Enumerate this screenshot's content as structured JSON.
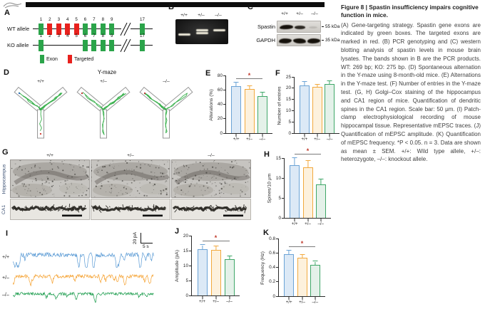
{
  "figure": {
    "panels": {
      "a": "A",
      "b": "B",
      "c": "C",
      "d": "D",
      "e": "E",
      "f": "F",
      "g": "G",
      "h": "H",
      "i": "I",
      "j": "J",
      "k": "K"
    }
  },
  "colors": {
    "bar_fills": [
      "#dce9f6",
      "#fdf1dd",
      "#e4f1e9"
    ],
    "bar_strokes": [
      "#6ba3d6",
      "#f2a93e",
      "#3fa768"
    ],
    "trace_colors": [
      "#5b9bd5",
      "#f5a02d",
      "#169a49"
    ],
    "exon_green": "#2ba44a",
    "targeted_red": "#e8211d",
    "sig_star": "#c0392b",
    "maze_trace": "#27a83c"
  },
  "panel_a": {
    "rows": [
      {
        "label": "WT allele",
        "exons": [
          {
            "num": "1",
            "type": "exon"
          },
          {
            "num": "2",
            "type": "targeted"
          },
          {
            "num": "3",
            "type": "targeted"
          },
          {
            "num": "4",
            "type": "targeted"
          },
          {
            "num": "5",
            "type": "targeted"
          },
          {
            "num": "6",
            "type": "exon"
          },
          {
            "num": "7",
            "type": "exon"
          },
          {
            "num": "8",
            "type": "exon"
          },
          {
            "num": "9",
            "type": "exon"
          }
        ]
      },
      {
        "label": "KO allele",
        "exons": [
          {
            "num": "1",
            "type": "exon"
          },
          {
            "num": "2",
            "type": ""
          },
          {
            "num": "3",
            "type": ""
          },
          {
            "num": "4",
            "type": ""
          },
          {
            "num": "5",
            "type": ""
          },
          {
            "num": "6",
            "type": "exon"
          },
          {
            "num": "7",
            "type": "exon"
          },
          {
            "num": "8",
            "type": "exon"
          },
          {
            "num": "9",
            "type": "exon"
          }
        ]
      }
    ],
    "last_exon": "17",
    "legend": [
      {
        "label": "Exon",
        "type": "exon"
      },
      {
        "label": "Targeted",
        "type": "targeted"
      }
    ]
  },
  "panel_b": {
    "lanes": [
      "+/+",
      "+/–",
      "–/–"
    ]
  },
  "panel_c": {
    "lanes": [
      "+/+",
      "+/–",
      "–/–"
    ],
    "rows": [
      "Spastin",
      "GAPDH"
    ],
    "kda": [
      "55 kDa",
      "35 kDa"
    ]
  },
  "panel_d": {
    "title": "Y-maze",
    "mazes": [
      "+/+",
      "+/–",
      "–/–"
    ]
  },
  "panel_g": {
    "columns": [
      "+/+",
      "+/–",
      "–/–"
    ],
    "row_labels": [
      "Hippocampus",
      "CA1"
    ]
  },
  "panel_i": {
    "traces": [
      {
        "label": "+/+"
      },
      {
        "label": "+/–"
      },
      {
        "label": "–/–"
      }
    ],
    "scale_vertical": "20 pA",
    "scale_horizontal": "5 s"
  },
  "chart_data": [
    {
      "panel": "E",
      "type": "bar",
      "ylabel": "Alterations (%)",
      "ylim": [
        0,
        80
      ],
      "yticks": [
        0,
        20,
        40,
        60,
        80
      ],
      "categories": [
        "+/+",
        "+/–",
        "–/–"
      ],
      "values": [
        65,
        61,
        51
      ],
      "errors": [
        5,
        4,
        5
      ],
      "significance": {
        "from": 0,
        "to": 2,
        "label": "*"
      }
    },
    {
      "panel": "F",
      "type": "bar",
      "ylabel": "Number of entries",
      "ylim": [
        0,
        25
      ],
      "yticks": [
        0,
        5,
        10,
        15,
        20,
        25
      ],
      "categories": [
        "+/+",
        "+/–",
        "–/–"
      ],
      "values": [
        21.2,
        20.6,
        21.7
      ],
      "errors": [
        1.5,
        1.0,
        1.4
      ],
      "significance": null
    },
    {
      "panel": "H",
      "type": "bar",
      "ylabel": "Spines/10 μm",
      "ylim": [
        0,
        15
      ],
      "yticks": [
        0,
        5,
        10,
        15
      ],
      "categories": [
        "+/+",
        "+/–",
        "–/–"
      ],
      "values": [
        13.2,
        12.6,
        8.4
      ],
      "errors": [
        1.8,
        1.7,
        1.3
      ],
      "significance": {
        "from": 0,
        "to": 2,
        "label": "*"
      }
    },
    {
      "panel": "J",
      "type": "bar",
      "ylabel": "Amplitude (pA)",
      "ylim": [
        0,
        20
      ],
      "yticks": [
        0,
        5,
        10,
        15,
        20
      ],
      "categories": [
        "+/+",
        "+/–",
        "–/–"
      ],
      "values": [
        15.6,
        15.2,
        12.1
      ],
      "errors": [
        1.2,
        1.2,
        1.0
      ],
      "significance": {
        "from": 0,
        "to": 2,
        "label": "*"
      }
    },
    {
      "panel": "K",
      "type": "bar",
      "ylabel": "Frequency (Hz)",
      "ylim": [
        0,
        0.8
      ],
      "yticks": [
        0,
        0.2,
        0.4,
        0.6,
        0.8
      ],
      "categories": [
        "+/+",
        "+/–",
        "–/–"
      ],
      "values": [
        0.58,
        0.53,
        0.44
      ],
      "errors": [
        0.05,
        0.04,
        0.04
      ],
      "significance": {
        "from": 0,
        "to": 2,
        "label": "*"
      }
    }
  ],
  "legend_text": {
    "title": "Figure 8  |  Spastin insufficiency impairs cognitive function in mice.",
    "body": "(A) Gene-targeting strategy. Spastin gene exons are indicated by green boxes. The targeted exons are marked in red. (B) PCR genotyping and (C) western blotting analysis of spastin levels in mouse brain lysates. The bands shown in B are the PCR products. WT: 269 bp; KO: 275 bp. (D) Spontaneous alternation in the Y-maze using 8-month-old mice. (E) Alternations in the Y-maze test. (F) Number of entries in the Y-maze test. (G, H) Golgi–Cox staining of the hippocampus and CA1 region of mice. Quantification of dendritic spines in the CA1 region. Scale bar: 50 μm. (I) Patch-clamp electrophysiological recording of mouse hippocampal tissue. Representative mEPSC traces. (J) Quantification of mEPSC amplitude. (K) Quantification of mEPSC frequency. *P < 0.05. n = 3. Data are shown as mean ± SEM. +/+: Wild type allele, +/–: heterozygote, –/–: knockout allele."
  }
}
